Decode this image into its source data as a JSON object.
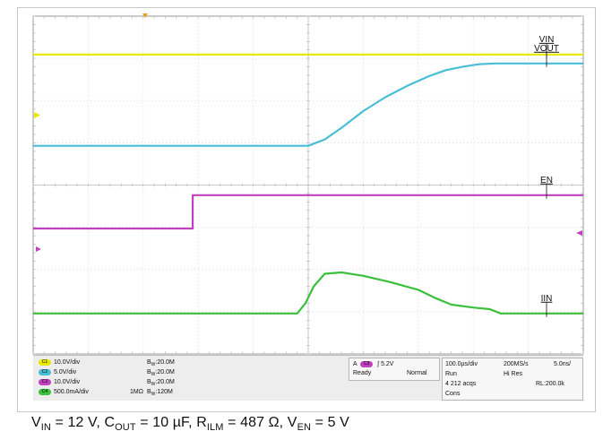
{
  "chart_data": {
    "type": "line",
    "title": "",
    "xlabel": "",
    "ylabel": "",
    "grid": true,
    "divisions": {
      "x": 10,
      "y": 8
    },
    "time_per_div_us": 100,
    "x_unit": "div",
    "xlim": [
      0,
      10
    ],
    "ylim": [
      0,
      8
    ],
    "series": [
      {
        "name": "VIN",
        "color": "#e8e800",
        "x": [
          0,
          10
        ],
        "y": [
          7.09,
          7.09
        ]
      },
      {
        "name": "VOUT",
        "color": "#48bed6",
        "x": [
          0,
          5.0,
          5.3,
          5.6,
          6.0,
          6.4,
          6.8,
          7.2,
          7.5,
          7.8,
          8.1,
          8.4,
          10
        ],
        "y": [
          4.93,
          4.93,
          5.08,
          5.35,
          5.75,
          6.08,
          6.35,
          6.58,
          6.72,
          6.8,
          6.86,
          6.88,
          6.88
        ]
      },
      {
        "name": "EN",
        "color": "#c040c0",
        "x": [
          0,
          2.9,
          2.9,
          10
        ],
        "y": [
          2.97,
          2.97,
          3.76,
          3.76
        ]
      },
      {
        "name": "IIN",
        "color": "#3cbf3c",
        "x": [
          0,
          4.8,
          4.95,
          5.1,
          5.3,
          5.6,
          6.0,
          6.5,
          7.0,
          7.3,
          7.6,
          8.0,
          8.3,
          8.5,
          10
        ],
        "y": [
          0.96,
          0.96,
          1.2,
          1.6,
          1.9,
          1.93,
          1.85,
          1.7,
          1.52,
          1.33,
          1.17,
          1.1,
          1.06,
          0.96,
          0.96
        ]
      }
    ],
    "labels": [
      "VIN",
      "VOUT",
      "EN",
      "IIN"
    ]
  },
  "channels": [
    {
      "id": "C1",
      "color": "#e8e800",
      "scale": "10.0V/div",
      "extra": "",
      "bw": "20.0M"
    },
    {
      "id": "C2",
      "color": "#48bed6",
      "scale": "5.0V/div",
      "extra": "",
      "bw": "20.0M"
    },
    {
      "id": "C3",
      "color": "#c040c0",
      "scale": "10.0V/div",
      "extra": "",
      "bw": "20.0M"
    },
    {
      "id": "C4",
      "color": "#3cbf3c",
      "scale": "500.0mA/div",
      "extra": "1MΩ",
      "bw": "120M"
    }
  ],
  "bw_prefix": "B",
  "bw_sub": "W",
  "trigger": {
    "mode_letter": "A",
    "source": "C3",
    "level": "5.2V",
    "state": "Ready",
    "type": "Normal"
  },
  "horizontal": {
    "timebase": "100.0µs/div",
    "sample_rate": "200MS/s",
    "resolution": "5.0ns/",
    "run": "Run",
    "acq_mode": "Hi Res",
    "acqs": "4 212 acqs",
    "record": "RL:200.0k",
    "cons": "Cons"
  },
  "caption": {
    "parts": [
      {
        "main": "V",
        "sub": "IN",
        "rest": " = 12 V, "
      },
      {
        "main": "C",
        "sub": "OUT",
        "rest": " = 10 µF, "
      },
      {
        "main": "R",
        "sub": "ILM",
        "rest": " = 487 Ω, "
      },
      {
        "main": "V",
        "sub": "EN",
        "rest": " = 5 V"
      }
    ]
  }
}
